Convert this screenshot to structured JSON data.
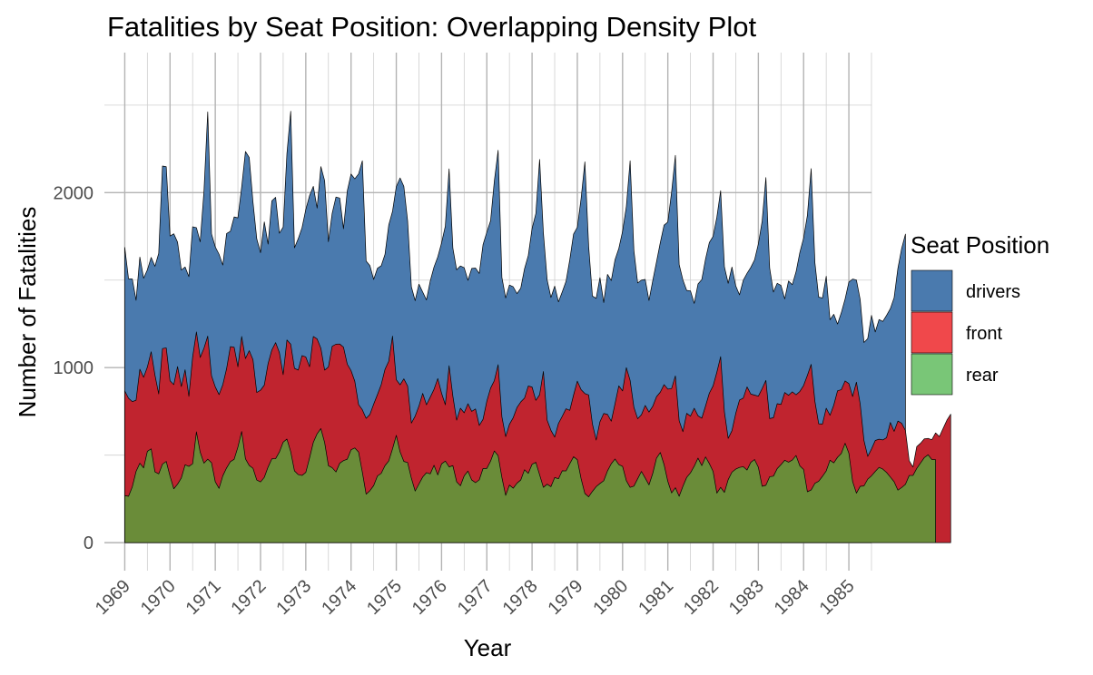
{
  "chart_data": {
    "type": "area",
    "title": "Fatalities by Seat Position: Overlapping Density Plot",
    "xlabel": "Year",
    "ylabel": "Number of Fatalities",
    "xlim": [
      1968.55,
      1985.5
    ],
    "ylim": [
      -160,
      2800
    ],
    "x_ticks": [
      1969,
      1970,
      1971,
      1972,
      1973,
      1974,
      1975,
      1976,
      1977,
      1978,
      1979,
      1980,
      1981,
      1982,
      1983,
      1984,
      1985
    ],
    "y_ticks": [
      0,
      1000,
      2000
    ],
    "x_start": 1969,
    "x_step": 0.0833333,
    "grid": true,
    "legend": {
      "title": "Seat Position",
      "position": "right",
      "entries": [
        {
          "label": "drivers",
          "color": "#4a7aae"
        },
        {
          "label": "front",
          "color": "#f0484b"
        },
        {
          "label": "rear",
          "color": "#79c677"
        }
      ]
    },
    "series": [
      {
        "name": "drivers",
        "color": "#4a7aae",
        "values": [
          1687,
          1508,
          1507,
          1385,
          1632,
          1511,
          1559,
          1630,
          1579,
          1653,
          2152,
          2148,
          1752,
          1765,
          1717,
          1558,
          1575,
          1520,
          1805,
          1800,
          1719,
          2008,
          2461,
          1765,
          1690,
          1648,
          1586,
          1766,
          1779,
          1861,
          1856,
          2032,
          2235,
          2201,
          1946,
          1736,
          1657,
          1833,
          1706,
          1953,
          1973,
          1768,
          1803,
          2224,
          2465,
          1685,
          1737,
          1799,
          1903,
          1983,
          2036,
          1912,
          2149,
          2068,
          1720,
          1882,
          1975,
          1969,
          1794,
          2010,
          2106,
          2079,
          2107,
          2182,
          1609,
          1583,
          1504,
          1568,
          1582,
          1647,
          1815,
          1893,
          2034,
          2084,
          2036,
          1839,
          1462,
          1383,
          1477,
          1432,
          1387,
          1495,
          1575,
          1633,
          1712,
          1809,
          2136,
          1683,
          1559,
          1581,
          1571,
          1499,
          1567,
          1569,
          1538,
          1703,
          1774,
          1839,
          2067,
          2242,
          1516,
          1398,
          1472,
          1462,
          1423,
          1454,
          1565,
          1641,
          1795,
          1880,
          2190,
          1770,
          1502,
          1401,
          1466,
          1376,
          1433,
          1493,
          1617,
          1763,
          1802,
          1966,
          2176,
          1695,
          1409,
          1396,
          1514,
          1372,
          1533,
          1498,
          1617,
          1681,
          1779,
          1921,
          2182,
          1670,
          1484,
          1500,
          1504,
          1384,
          1497,
          1605,
          1714,
          1814,
          1832,
          2004,
          2213,
          1589,
          1501,
          1441,
          1439,
          1367,
          1478,
          1503,
          1621,
          1715,
          1750,
          1860,
          2011,
          1576,
          1482,
          1575,
          1468,
          1416,
          1499,
          1539,
          1573,
          1616,
          1707,
          1836,
          2086,
          1569,
          1432,
          1482,
          1470,
          1393,
          1495,
          1474,
          1548,
          1658,
          1741,
          1870,
          2137,
          1599,
          1403,
          1398,
          1522,
          1274,
          1305,
          1249,
          1314,
          1392,
          1489,
          1506,
          1501,
          1389,
          1144,
          1166,
          1299,
          1204,
          1275,
          1264,
          1299,
          1337,
          1400,
          1567,
          1681,
          1763
        ]
      },
      {
        "name": "front",
        "color": "#c0242f",
        "values": [
          867,
          825,
          806,
          814,
          991,
          945,
          1004,
          1091,
          958,
          850,
          1109,
          1113,
          925,
          903,
          1006,
          892,
          988,
          836,
          1061,
          1204,
          1058,
          1111,
          1180,
          954,
          890,
          846,
          903,
          994,
          1120,
          1117,
          1005,
          1178,
          1052,
          1097,
          1045,
          858,
          871,
          900,
          1023,
          1101,
          1143,
          1086,
          960,
          1158,
          1134,
          996,
          986,
          1069,
          1061,
          1005,
          1178,
          1164,
          1111,
          986,
          1004,
          1122,
          1134,
          1135,
          1117,
          1020,
          983,
          922,
          789,
          759,
          710,
          732,
          791,
          846,
          903,
          990,
          1037,
          1180,
          931,
          902,
          936,
          895,
          683,
          723,
          780,
          853,
          788,
          831,
          876,
          938,
          854,
          788,
          1011,
          837,
          700,
          768,
          742,
          794,
          750,
          764,
          670,
          705,
          808,
          883,
          926,
          1017,
          719,
          606,
          676,
          714,
          772,
          804,
          826,
          895,
          889,
          813,
          845,
          978,
          700,
          642,
          603,
          681,
          722,
          765,
          756,
          843,
          923,
          874,
          852,
          844,
          678,
          586,
          691,
          738,
          733,
          694,
          794,
          896,
          867,
          1000,
          927,
          774,
          708,
          731,
          784,
          746,
          779,
          834,
          860,
          903,
          877,
          881,
          953,
          697,
          634,
          739,
          723,
          768,
          725,
          711,
          781,
          854,
          896,
          974,
          1063,
          747,
          596,
          640,
          738,
          815,
          826,
          890,
          849,
          843,
          837,
          880,
          927,
          709,
          714,
          794,
          790,
          858,
          842,
          862,
          845,
          864,
          898,
          956,
          1019,
          807,
          679,
          678,
          768,
          728,
          786,
          868,
          874,
          924,
          909,
          835,
          917,
          793,
          584,
          493,
          535,
          584,
          591,
          587,
          600,
          687,
          636,
          695,
          682,
          641,
          468,
          432,
          549,
          568,
          593,
          596,
          588,
          627,
          606,
          653,
          700,
          734
        ]
      },
      {
        "name": "rear",
        "color": "#6a8c39",
        "values": [
          269,
          265,
          319,
          407,
          454,
          427,
          522,
          536,
          405,
          393,
          449,
          464,
          380,
          308,
          334,
          370,
          445,
          436,
          451,
          633,
          517,
          454,
          477,
          457,
          348,
          310,
          382,
          427,
          463,
          476,
          546,
          635,
          479,
          441,
          425,
          358,
          347,
          373,
          432,
          479,
          480,
          518,
          574,
          592,
          520,
          410,
          389,
          384,
          401,
          484,
          573,
          622,
          652,
          572,
          440,
          428,
          404,
          454,
          469,
          477,
          531,
          541,
          518,
          402,
          277,
          297,
          326,
          381,
          396,
          440,
          467,
          536,
          613,
          519,
          464,
          458,
          368,
          295,
          335,
          375,
          400,
          393,
          442,
          387,
          450,
          466,
          433,
          440,
          348,
          325,
          382,
          409,
          358,
          343,
          359,
          424,
          424,
          466,
          524,
          497,
          372,
          270,
          329,
          311,
          340,
          358,
          417,
          396,
          448,
          459,
          388,
          316,
          334,
          320,
          372,
          365,
          411,
          410,
          451,
          491,
          474,
          365,
          281,
          262,
          293,
          320,
          338,
          354,
          410,
          451,
          478,
          446,
          436,
          354,
          316,
          323,
          365,
          407,
          369,
          330,
          396,
          483,
          515,
          446,
          350,
          284,
          314,
          265,
          322,
          373,
          399,
          437,
          483,
          440,
          490,
          452,
          407,
          283,
          316,
          287,
          360,
          403,
          420,
          430,
          434,
          415,
          459,
          475,
          431,
          322,
          328,
          377,
          380,
          423,
          446,
          471,
          460,
          472,
          498,
          439,
          418,
          291,
          301,
          339,
          351,
          379,
          410,
          471,
          456,
          488,
          510,
          568,
          511,
          349,
          283,
          322,
          324,
          363,
          382,
          407,
          430,
          420,
          401,
          375,
          348,
          300,
          315,
          333,
          384,
          384,
          424,
          455,
          486,
          502,
          475,
          474
        ]
      }
    ]
  }
}
